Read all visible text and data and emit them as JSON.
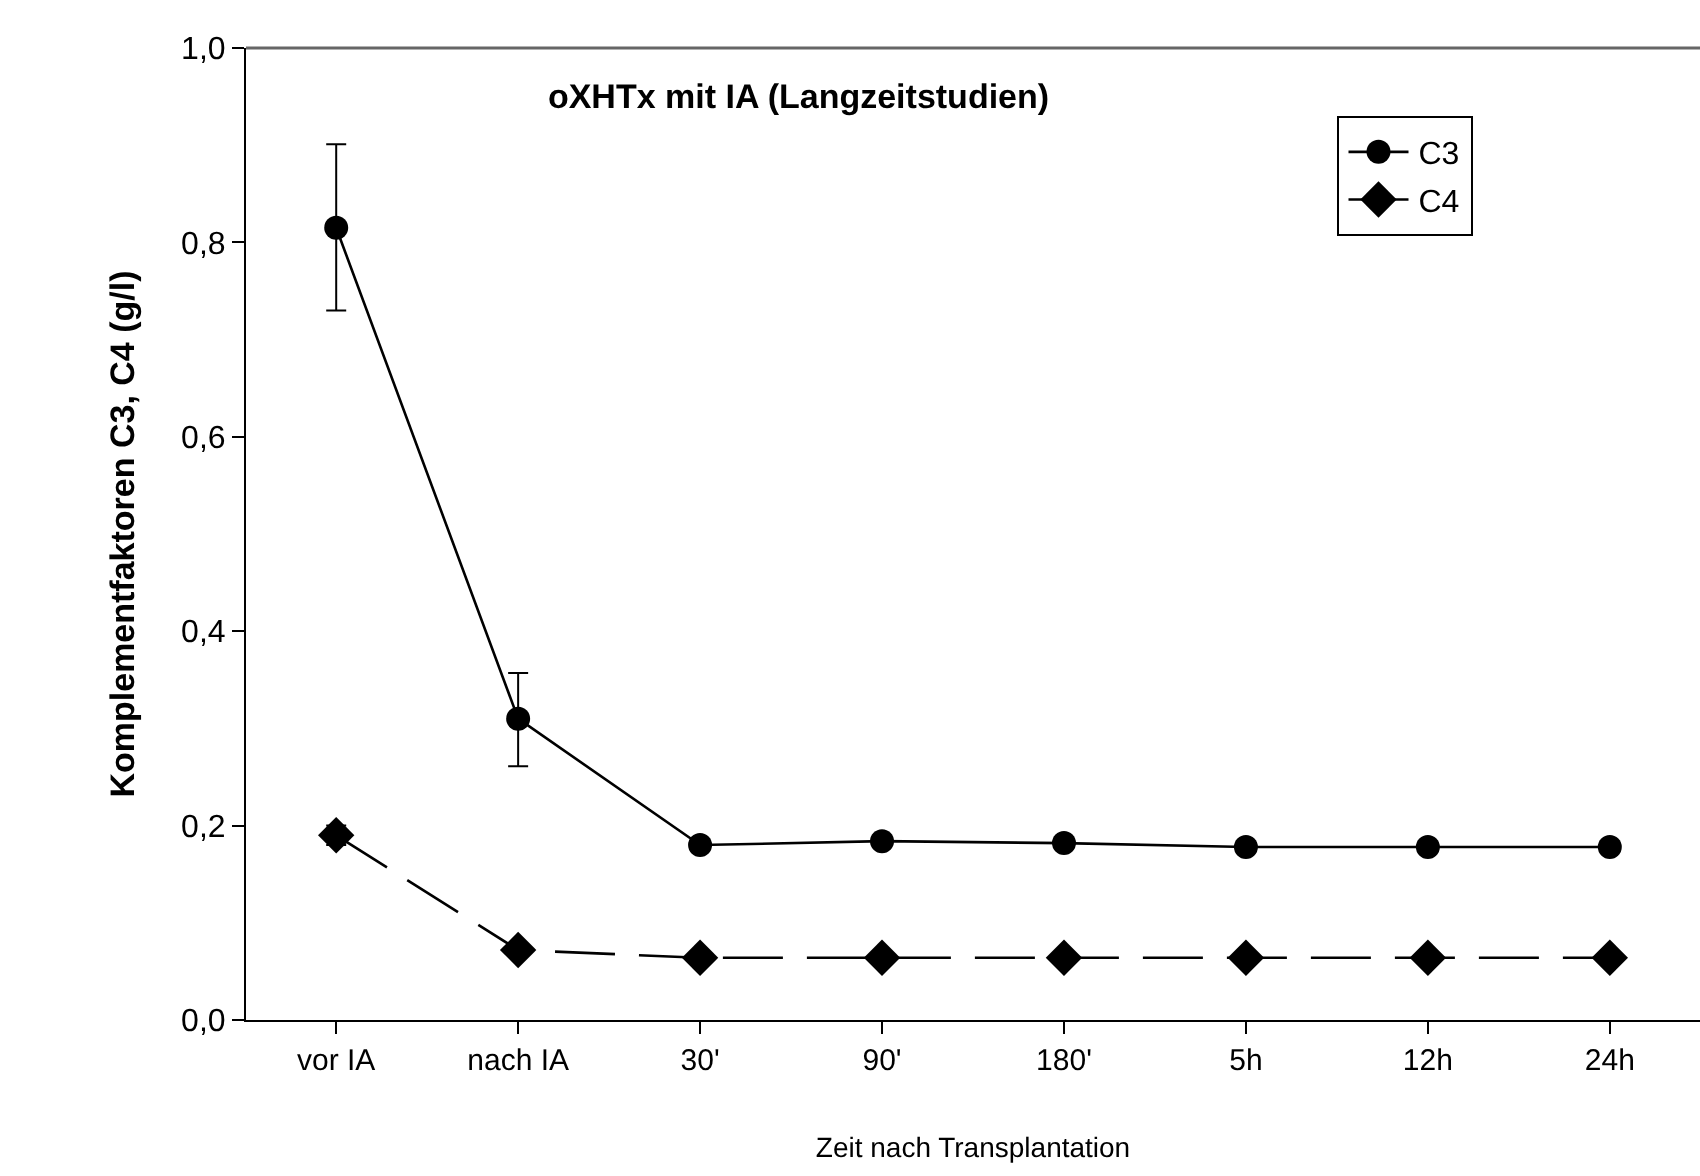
{
  "chart_data": {
    "type": "line",
    "title": "oXHTx mit IA (Langzeitstudien)",
    "xlabel": "Zeit nach Transplantation",
    "ylabel": "Komplementfaktoren C3, C4 (g/l)",
    "categories": [
      "vor IA",
      "nach IA",
      "30'",
      "90'",
      "180'",
      "5h",
      "12h",
      "24h"
    ],
    "series": [
      {
        "name": "C3",
        "color": "#000000",
        "marker": "circle",
        "line_style": "solid",
        "values": [
          0.815,
          0.31,
          0.18,
          0.184,
          0.182,
          0.178,
          0.178,
          0.178
        ],
        "errors": [
          [
            0.73,
            0.901
          ],
          [
            0.261,
            0.357
          ],
          null,
          null,
          null,
          null,
          null,
          null
        ]
      },
      {
        "name": "C4",
        "color": "#000000",
        "marker": "diamond",
        "line_style": "dashed",
        "values": [
          0.19,
          0.072,
          0.064,
          0.064,
          0.064,
          0.064,
          0.064,
          0.064
        ],
        "errors": [
          [
            0.18,
            0.2
          ],
          null,
          null,
          null,
          null,
          null,
          null,
          null
        ]
      }
    ],
    "ylim": [
      0,
      1
    ],
    "yticks": [
      {
        "value": 0,
        "label": "0,0"
      },
      {
        "value": 0.2,
        "label": "0,2"
      },
      {
        "value": 0.4,
        "label": "0,4"
      },
      {
        "value": 0.6,
        "label": "0,6"
      },
      {
        "value": 0.8,
        "label": "0,8"
      },
      {
        "value": 1,
        "label": "1,0"
      }
    ],
    "grid": false,
    "legend": "top right"
  }
}
